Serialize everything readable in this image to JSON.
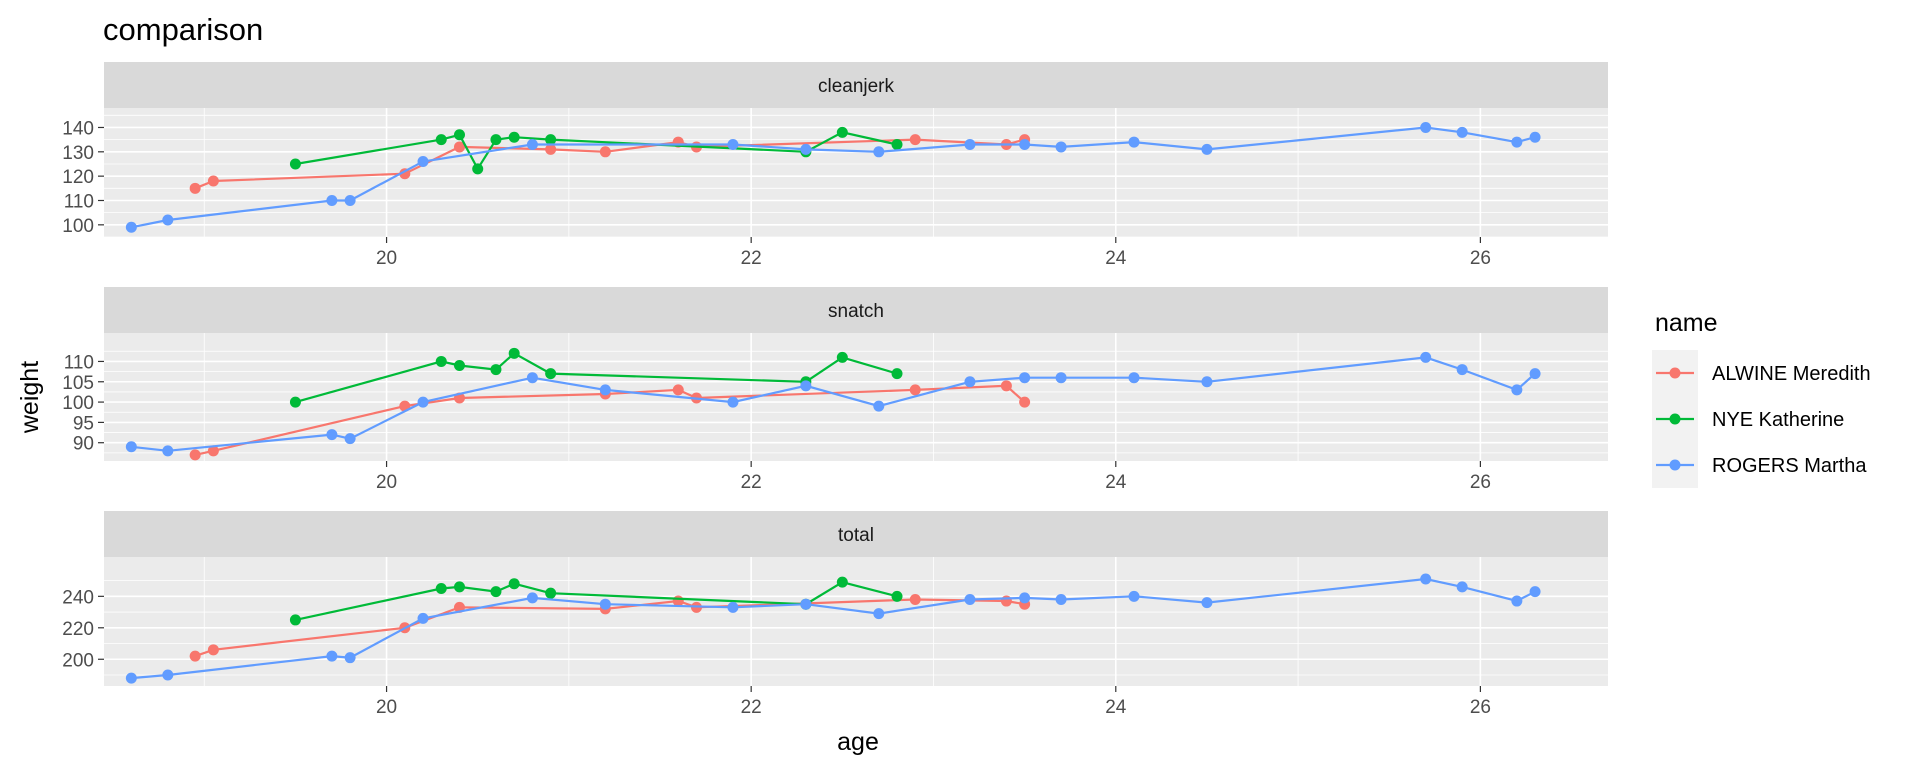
{
  "chart_data": {
    "type": "line",
    "title": "comparison",
    "xlabel": "age",
    "ylabel": "weight",
    "xlim": [
      18.45,
      26.7
    ],
    "x_ticks": [
      20,
      22,
      24,
      26
    ],
    "x_tick_labels": [
      "20",
      "22",
      "24",
      "26"
    ],
    "legend": {
      "title": "name",
      "position": "right",
      "entries": [
        "ALWINE Meredith",
        "NYE Katherine",
        "ROGERS Martha"
      ]
    },
    "colors": {
      "ALWINE Meredith": "#F8766D",
      "NYE Katherine": "#00BA38",
      "ROGERS Martha": "#619CFF"
    },
    "facets": [
      {
        "label": "cleanjerk",
        "ylim": [
          95,
          148
        ],
        "y_ticks": [
          100,
          110,
          120,
          130,
          140
        ],
        "y_tick_labels": [
          "100",
          "110",
          "120",
          "130",
          "140"
        ],
        "series": [
          {
            "name": "ALWINE Meredith",
            "x": [
              18.95,
              19.05,
              20.1,
              20.4,
              20.9,
              21.2,
              21.6,
              21.7,
              22.9,
              23.4,
              23.5
            ],
            "y": [
              115,
              118,
              121,
              132,
              131,
              130,
              134,
              132,
              135,
              133,
              135
            ]
          },
          {
            "name": "NYE Katherine",
            "x": [
              19.5,
              20.3,
              20.4,
              20.5,
              20.6,
              20.7,
              20.9,
              22.3,
              22.5,
              22.8
            ],
            "y": [
              125,
              135,
              137,
              123,
              135,
              136,
              135,
              130,
              138,
              133
            ]
          },
          {
            "name": "ROGERS Martha",
            "x": [
              18.6,
              18.8,
              19.7,
              19.8,
              20.2,
              20.8,
              21.9,
              22.3,
              22.7,
              23.2,
              23.5,
              23.7,
              24.1,
              24.5,
              25.7,
              25.9,
              26.2,
              26.3
            ],
            "y": [
              99,
              102,
              110,
              110,
              126,
              133,
              133,
              131,
              130,
              133,
              133,
              132,
              134,
              131,
              140,
              138,
              134,
              136
            ]
          }
        ]
      },
      {
        "label": "snatch",
        "ylim": [
          85.5,
          117
        ],
        "y_ticks": [
          90,
          95,
          100,
          105,
          110
        ],
        "y_tick_labels": [
          "90",
          "95",
          "100",
          "105",
          "110"
        ],
        "series": [
          {
            "name": "ALWINE Meredith",
            "x": [
              18.95,
              19.05,
              20.1,
              20.4,
              21.2,
              21.6,
              21.7,
              22.9,
              23.4,
              23.5
            ],
            "y": [
              87,
              88,
              99,
              101,
              102,
              103,
              101,
              103,
              104,
              100
            ]
          },
          {
            "name": "NYE Katherine",
            "x": [
              19.5,
              20.3,
              20.4,
              20.6,
              20.7,
              20.9,
              22.3,
              22.5,
              22.8
            ],
            "y": [
              100,
              110,
              109,
              108,
              112,
              107,
              105,
              111,
              107
            ]
          },
          {
            "name": "ROGERS Martha",
            "x": [
              18.6,
              18.8,
              19.7,
              19.8,
              20.2,
              20.8,
              21.2,
              21.9,
              22.3,
              22.7,
              23.2,
              23.5,
              23.7,
              24.1,
              24.5,
              25.7,
              25.9,
              26.2,
              26.3
            ],
            "y": [
              89,
              88,
              92,
              91,
              100,
              106,
              103,
              100,
              104,
              99,
              105,
              106,
              106,
              106,
              105,
              111,
              108,
              103,
              107
            ]
          }
        ]
      },
      {
        "label": "total",
        "ylim": [
          183,
          265
        ],
        "y_ticks": [
          200,
          220,
          240
        ],
        "y_tick_labels": [
          "200",
          "220",
          "240"
        ],
        "series": [
          {
            "name": "ALWINE Meredith",
            "x": [
              18.95,
              19.05,
              20.1,
              20.4,
              21.2,
              21.6,
              21.7,
              22.9,
              23.4,
              23.5
            ],
            "y": [
              202,
              206,
              220,
              233,
              232,
              237,
              233,
              238,
              237,
              235
            ]
          },
          {
            "name": "NYE Katherine",
            "x": [
              19.5,
              20.3,
              20.4,
              20.6,
              20.7,
              20.9,
              22.3,
              22.5,
              22.8
            ],
            "y": [
              225,
              245,
              246,
              243,
              248,
              242,
              235,
              249,
              240
            ]
          },
          {
            "name": "ROGERS Martha",
            "x": [
              18.6,
              18.8,
              19.7,
              19.8,
              20.2,
              20.8,
              21.2,
              21.9,
              22.3,
              22.7,
              23.2,
              23.5,
              23.7,
              24.1,
              24.5,
              25.7,
              25.9,
              26.2,
              26.3
            ],
            "y": [
              188,
              190,
              202,
              201,
              226,
              239,
              235,
              233,
              235,
              229,
              238,
              239,
              238,
              240,
              236,
              251,
              246,
              237,
              243
            ]
          }
        ]
      }
    ]
  }
}
